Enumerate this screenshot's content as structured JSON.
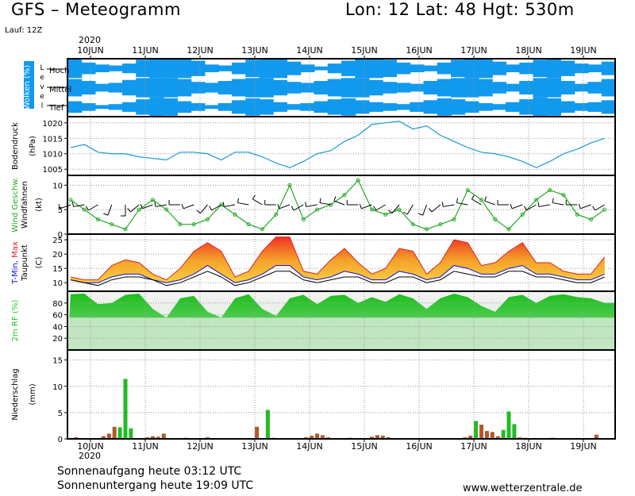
{
  "header": {
    "title": "GFS – Meteogramm",
    "coords": "Lon: 12 Lat: 48 Hgt: 530m",
    "run": "Lauf: 12Z",
    "year": "2020"
  },
  "footer": {
    "sunrise": "Sonnenaufgang heute 03:12 UTC",
    "sunset": "Sonnenuntergang heute 19:09 UTC",
    "site": "www.wetterzentrale.de"
  },
  "colors": {
    "cloud": "#1199ee",
    "pressure": "#1a9ad6",
    "wind": "#22aa22",
    "tmin": "#1111cc",
    "tmax": "#dd2222",
    "dewpoint": "#000000",
    "humidity": "#22cc22",
    "precip_green": "#22bb22",
    "precip_brown": "#b05a2a"
  },
  "chart_data": [
    {
      "type": "heatmap",
      "panel": "clouds",
      "ylabel": "Wolken (%)",
      "level_axis_label": "Level",
      "levels": [
        "Hoch",
        "Mittel",
        "Tief"
      ],
      "x": [
        "10JUN",
        "11JUN",
        "12JUN",
        "13JUN",
        "14JUN",
        "15JUN",
        "16JUN",
        "17JUN",
        "18JUN",
        "19JUN"
      ],
      "high_coverage": [
        100,
        60,
        40,
        30,
        50,
        90,
        100,
        100,
        100,
        80,
        40,
        30,
        60,
        90,
        100,
        100,
        70,
        40,
        20,
        50,
        80,
        100,
        100,
        90,
        60,
        40,
        30,
        60,
        90,
        100,
        100,
        70,
        40,
        60,
        90,
        100,
        80,
        50,
        40,
        70
      ],
      "mid_coverage": [
        90,
        70,
        40,
        50,
        80,
        100,
        100,
        100,
        90,
        60,
        50,
        70,
        90,
        100,
        100,
        80,
        60,
        50,
        70,
        90,
        100,
        100,
        80,
        60,
        50,
        40,
        70,
        90,
        100,
        100,
        90,
        60,
        40,
        70,
        100,
        100,
        70,
        40,
        60,
        90
      ],
      "low_coverage": [
        60,
        40,
        20,
        30,
        50,
        80,
        100,
        90,
        60,
        40,
        20,
        40,
        70,
        90,
        80,
        50,
        30,
        40,
        60,
        80,
        90,
        70,
        50,
        40,
        30,
        50,
        70,
        90,
        80,
        60,
        40,
        30,
        50,
        80,
        100,
        90,
        60,
        40,
        50,
        70
      ]
    },
    {
      "type": "line",
      "panel": "pressure",
      "ylabel": "Bodendruck (hPa)",
      "yticks": [
        1005,
        1010,
        1015,
        1020
      ],
      "ylim": [
        1003,
        1022
      ],
      "x_days": [
        0,
        0.25,
        0.5,
        0.75,
        1,
        1.25,
        1.5,
        1.75,
        2,
        2.25,
        2.5,
        2.75,
        3,
        3.25,
        3.5,
        3.75,
        4,
        4.25,
        4.5,
        4.75,
        5,
        5.25,
        5.5,
        5.75,
        6,
        6.25,
        6.5,
        6.75,
        7,
        7.25,
        7.5,
        7.75,
        8,
        8.25,
        8.5,
        8.75,
        9,
        9.25,
        9.5,
        9.75
      ],
      "values": [
        1012,
        1013,
        1010.5,
        1010,
        1010,
        1009,
        1008.5,
        1008,
        1010.5,
        1010.5,
        1010,
        1008,
        1010.5,
        1010.5,
        1009,
        1007,
        1005.5,
        1007.5,
        1010,
        1011,
        1014,
        1016,
        1019.5,
        1020,
        1020.5,
        1018,
        1019,
        1016,
        1014,
        1012,
        1010.5,
        1010,
        1009,
        1007.5,
        1005.5,
        1007.5,
        1010,
        1011.5,
        1013.5,
        1015
      ]
    },
    {
      "type": "line",
      "panel": "wind",
      "ylabel": "Wind Geschw.",
      "ylabel2": "Windfahnen",
      "unit": "(kt)",
      "yticks": [
        0,
        5,
        10
      ],
      "ylim": [
        0,
        12
      ],
      "x_days": [
        0,
        0.25,
        0.5,
        0.75,
        1,
        1.25,
        1.5,
        1.75,
        2,
        2.25,
        2.5,
        2.75,
        3,
        3.25,
        3.5,
        3.75,
        4,
        4.25,
        4.5,
        4.75,
        5,
        5.25,
        5.5,
        5.75,
        6,
        6.25,
        6.5,
        6.75,
        7,
        7.25,
        7.5,
        7.75,
        8,
        8.25,
        8.5,
        8.75,
        9,
        9.25,
        9.5,
        9.75
      ],
      "speed": [
        7,
        5,
        3,
        2,
        1,
        5,
        7,
        5,
        2,
        2,
        3,
        6,
        4,
        2,
        1,
        4,
        10,
        3,
        5,
        6,
        8,
        11,
        5,
        4,
        5,
        2,
        1,
        2,
        3,
        9,
        7,
        3,
        1,
        4,
        7,
        9,
        8,
        4,
        3,
        5
      ],
      "barb_direction_deg": [
        250,
        260,
        240,
        200,
        180,
        230,
        250,
        260,
        270,
        250,
        220,
        240,
        260,
        280,
        300,
        270,
        250,
        240,
        260,
        280,
        290,
        270,
        250,
        240,
        220,
        210,
        200,
        230,
        260,
        280,
        300,
        290,
        270,
        250,
        240,
        260,
        280,
        270,
        250,
        240
      ]
    },
    {
      "type": "area",
      "panel": "temperature",
      "ylabel": "T-Min, Max",
      "ylabel2": "Taupunkt",
      "unit": "(C)",
      "yticks": [
        10,
        15,
        20,
        25
      ],
      "ylim": [
        7,
        27
      ],
      "x_days": [
        0,
        0.25,
        0.5,
        0.75,
        1,
        1.25,
        1.5,
        1.75,
        2,
        2.25,
        2.5,
        2.75,
        3,
        3.25,
        3.5,
        3.75,
        4,
        4.25,
        4.5,
        4.75,
        5,
        5.25,
        5.5,
        5.75,
        6,
        6.25,
        6.5,
        6.75,
        7,
        7.25,
        7.5,
        7.75,
        8,
        8.25,
        8.5,
        8.75,
        9,
        9.25,
        9.5,
        9.75
      ],
      "series": [
        {
          "name": "T-Max",
          "values": [
            12,
            11,
            11,
            16,
            18,
            17,
            13,
            11,
            15,
            21,
            24,
            21,
            12,
            14,
            21,
            26,
            26,
            14,
            13,
            18,
            22,
            17,
            13,
            15,
            22,
            21,
            13,
            17,
            25,
            24,
            16,
            17,
            21,
            24,
            17,
            17,
            14,
            13,
            13,
            19
          ]
        },
        {
          "name": "T-Min",
          "values": [
            11,
            10,
            10,
            12,
            13,
            13,
            11,
            10,
            11,
            13,
            16,
            13,
            10,
            11,
            13,
            16,
            16,
            12,
            11,
            12,
            14,
            13,
            11,
            11,
            14,
            13,
            11,
            12,
            16,
            15,
            13,
            13,
            15,
            16,
            13,
            13,
            12,
            11,
            11,
            13
          ]
        },
        {
          "name": "Taupunkt",
          "values": [
            11,
            10,
            9,
            11,
            12,
            12,
            11,
            9,
            10,
            12,
            14,
            12,
            9,
            10,
            12,
            14,
            14,
            11,
            10,
            11,
            12,
            12,
            10,
            10,
            12,
            12,
            10,
            11,
            14,
            13,
            12,
            12,
            14,
            14,
            12,
            12,
            11,
            10,
            10,
            12
          ]
        }
      ]
    },
    {
      "type": "area",
      "panel": "humidity",
      "ylabel": "2m RF (%)",
      "yticks": [
        20,
        40,
        60,
        80
      ],
      "ylim": [
        0,
        100
      ],
      "x_days": [
        0,
        0.25,
        0.5,
        0.75,
        1,
        1.25,
        1.5,
        1.75,
        2,
        2.25,
        2.5,
        2.75,
        3,
        3.25,
        3.5,
        3.75,
        4,
        4.25,
        4.5,
        4.75,
        5,
        5.25,
        5.5,
        5.75,
        6,
        6.25,
        6.5,
        6.75,
        7,
        7.25,
        7.5,
        7.75,
        8,
        8.25,
        8.5,
        8.75,
        9,
        9.25,
        9.5,
        9.75
      ],
      "values": [
        95,
        96,
        78,
        80,
        94,
        96,
        70,
        55,
        88,
        92,
        65,
        55,
        88,
        95,
        70,
        58,
        88,
        94,
        78,
        92,
        94,
        80,
        90,
        82,
        95,
        88,
        70,
        88,
        96,
        90,
        75,
        65,
        90,
        94,
        80,
        92,
        95,
        90,
        88,
        80
      ]
    },
    {
      "type": "bar",
      "panel": "precipitation",
      "ylabel": "Niederschlag (mm)",
      "yticks": [
        0,
        5,
        10,
        15
      ],
      "ylim": [
        0,
        16
      ],
      "x": [
        "10JUN",
        "11JUN",
        "12JUN",
        "13JUN",
        "14JUN",
        "15JUN",
        "16JUN",
        "17JUN",
        "18JUN",
        "19JUN"
      ],
      "bar_days": [
        0.1,
        0.5,
        0.6,
        0.7,
        0.8,
        0.9,
        1.0,
        1.1,
        1.4,
        1.5,
        1.6,
        1.7,
        2.1,
        2.3,
        2.4,
        2.5,
        2.6,
        3.4,
        3.6,
        3.7,
        3.8,
        3.9,
        4.3,
        4.4,
        4.5,
        4.6,
        4.7,
        5.1,
        5.5,
        5.6,
        5.7,
        5.8,
        6.1,
        7.2,
        7.3,
        7.4,
        7.5,
        7.6,
        7.7,
        7.8,
        7.9,
        8.0,
        8.1,
        8.2,
        8.3,
        8.4,
        8.6,
        8.8,
        9.6
      ],
      "bar_values": [
        0.3,
        0.1,
        0.5,
        1.0,
        2.3,
        2.2,
        11.4,
        2.0,
        0.3,
        0.5,
        0.4,
        1.0,
        0.2,
        0.1,
        0.1,
        0.3,
        0.1,
        2.3,
        5.5,
        0.2,
        0.1,
        0.1,
        0.3,
        0.6,
        1.0,
        0.7,
        0.3,
        0.2,
        0.4,
        0.7,
        0.6,
        0.3,
        0.1,
        0.3,
        0.6,
        3.4,
        2.7,
        1.5,
        1.3,
        0.5,
        1.7,
        5.2,
        2.8,
        0.3,
        0.2,
        0.1,
        0.1,
        0.2,
        0.8
      ],
      "bar_kind": [
        "b",
        "b",
        "b",
        "b",
        "b",
        "g",
        "g",
        "g",
        "b",
        "b",
        "b",
        "b",
        "b",
        "b",
        "b",
        "b",
        "b",
        "b",
        "g",
        "g",
        "b",
        "b",
        "b",
        "b",
        "b",
        "b",
        "b",
        "b",
        "b",
        "b",
        "b",
        "b",
        "b",
        "b",
        "b",
        "g",
        "b",
        "b",
        "b",
        "b",
        "g",
        "g",
        "g",
        "b",
        "b",
        "b",
        "b",
        "b",
        "b"
      ]
    }
  ]
}
